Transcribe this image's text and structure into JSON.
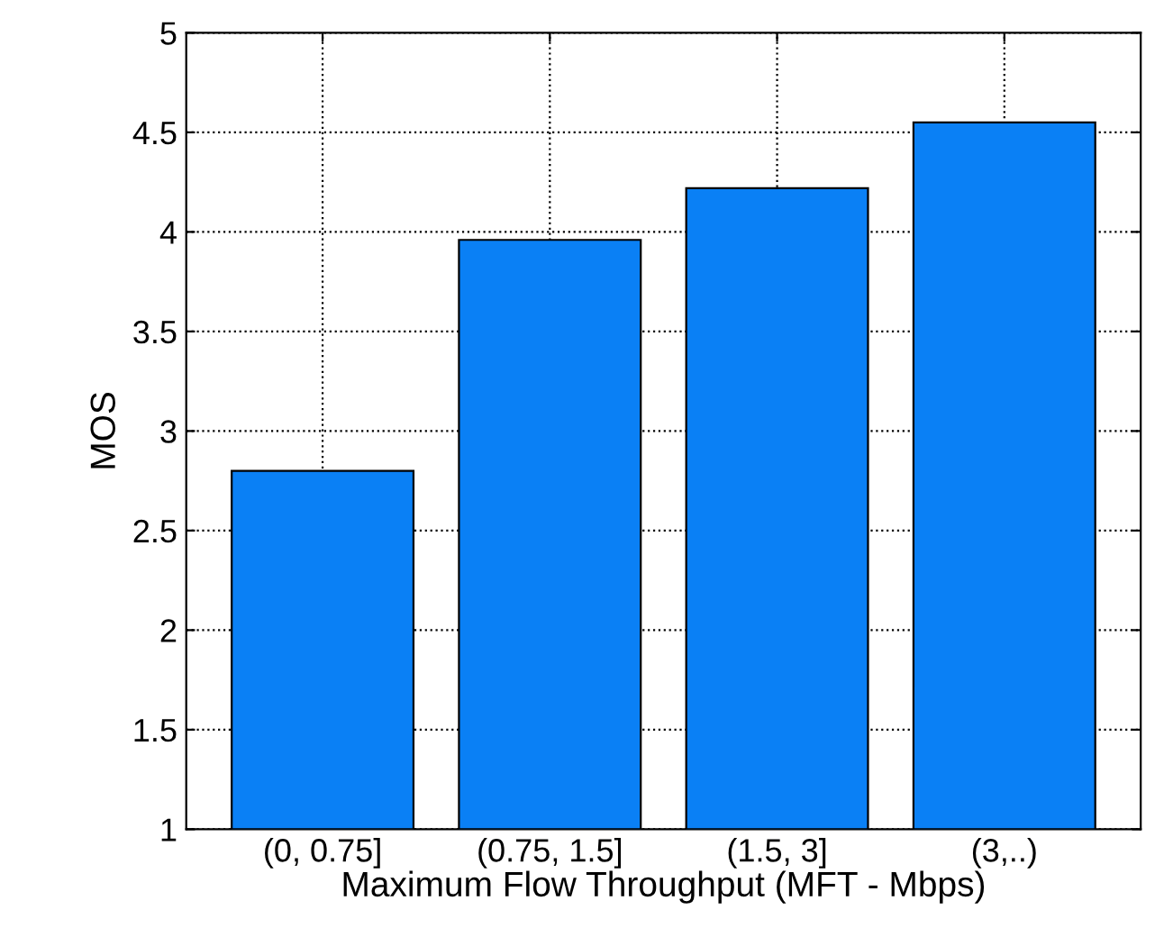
{
  "chart_data": {
    "type": "bar",
    "xlabel": "Maximum Flow Throughput (MFT - Mbps)",
    "ylabel": "MOS",
    "categories": [
      "(0, 0.75]",
      "(0.75, 1.5]",
      "(1.5, 3]",
      "(3,..)"
    ],
    "values": [
      2.8,
      3.96,
      4.22,
      4.55
    ],
    "color": "#0a80f5",
    "ylim": [
      1,
      5
    ],
    "yticks": [
      1,
      1.5,
      2,
      2.5,
      3,
      3.5,
      4,
      4.5,
      5
    ],
    "grid": true
  }
}
